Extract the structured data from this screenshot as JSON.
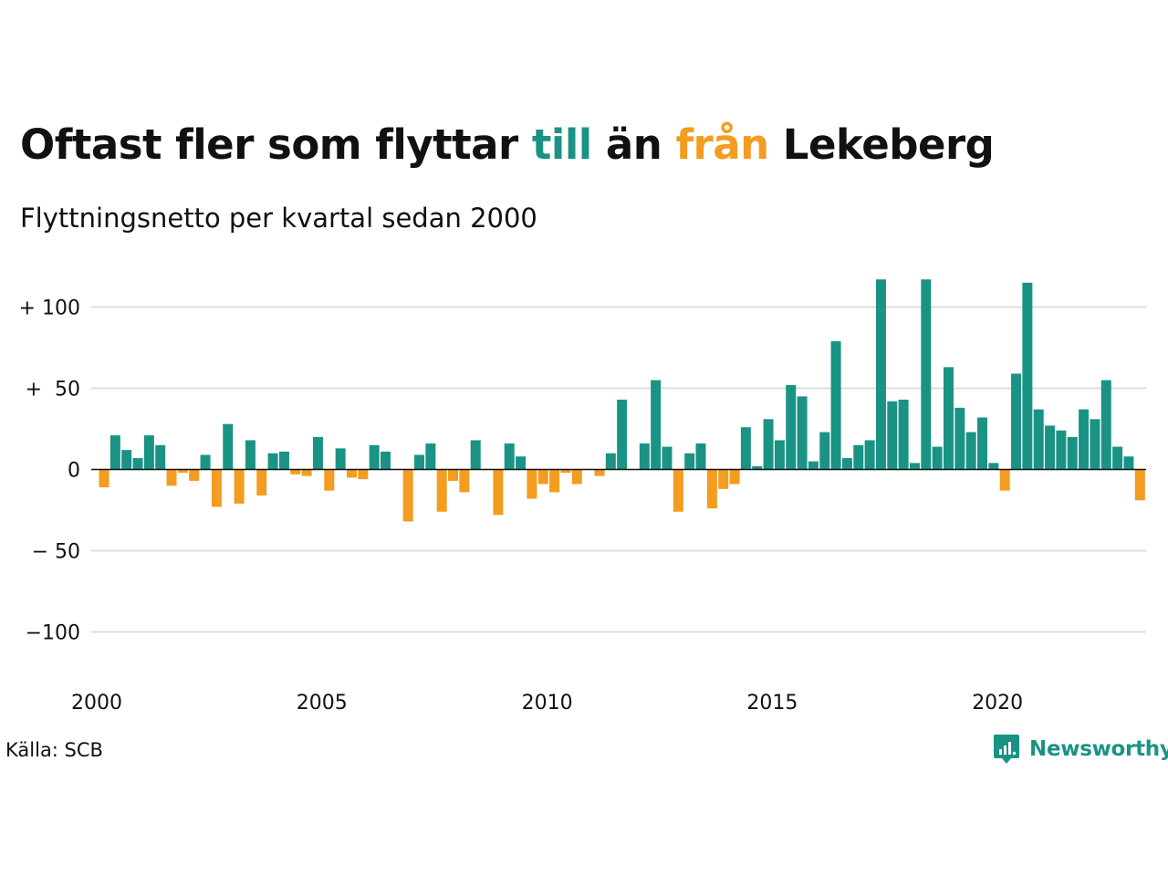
{
  "title": {
    "part1": "Oftast fler som flyttar ",
    "till": "till",
    "part2": " än ",
    "fran": "från",
    "part3": " Lekeberg"
  },
  "subtitle": "Flyttningsnetto per kvartal sedan 2000",
  "source": "Källa: SCB",
  "logo_text": "Newsworthy",
  "colors": {
    "positive": "#1a9385",
    "negative": "#f39c1f",
    "grid": "#dddddd",
    "text": "#111111"
  },
  "chart_data": {
    "type": "bar",
    "start_year": 2000,
    "periods_per_year": 4,
    "values": [
      -11,
      21,
      12,
      7,
      21,
      15,
      -10,
      -2,
      -7,
      9,
      -23,
      28,
      -21,
      18,
      -16,
      10,
      11,
      -3,
      -4,
      20,
      -13,
      13,
      -5,
      -6,
      15,
      11,
      0,
      -32,
      9,
      16,
      -26,
      -7,
      -14,
      18,
      0,
      -28,
      16,
      8,
      -18,
      -9,
      -14,
      -2,
      -9,
      0,
      -4,
      10,
      43,
      0,
      16,
      55,
      14,
      -26,
      10,
      16,
      -24,
      -12,
      -9,
      26,
      2,
      31,
      18,
      52,
      45,
      5,
      23,
      79,
      7,
      15,
      18,
      117,
      42,
      43,
      4,
      117,
      14,
      63,
      38,
      23,
      32,
      4,
      -13,
      59,
      115,
      37,
      27,
      24,
      20,
      37,
      31,
      55,
      14,
      8,
      -19
    ],
    "yticks": [
      100,
      50,
      0,
      -50,
      -100
    ],
    "ytick_labels": [
      "+ 100",
      "+  50",
      "0",
      "− 50",
      "−100"
    ],
    "xtick_labels": [
      "2000",
      "2005",
      "2010",
      "2015",
      "2020"
    ],
    "ylim": [
      -125,
      120
    ],
    "grid": true
  }
}
